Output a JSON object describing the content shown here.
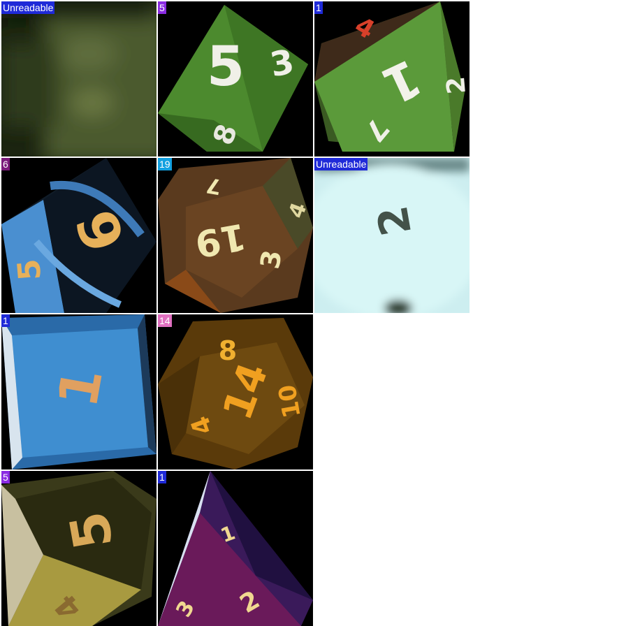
{
  "tiles": [
    {
      "label": "Unreadable",
      "badge_color": "#1f2ad8",
      "die": "blur-green",
      "faces": []
    },
    {
      "label": "5",
      "badge_color": "#8a2be2",
      "die": "d8-green",
      "faces": [
        "5",
        "3",
        "8"
      ]
    },
    {
      "label": "1",
      "badge_color": "#1f2ad8",
      "die": "d8-green-2",
      "faces": [
        "1",
        "4",
        "7",
        "2"
      ]
    },
    {
      "label": "6",
      "badge_color": "#7a1a7a",
      "die": "d8-blue-black",
      "faces": [
        "6",
        "5"
      ]
    },
    {
      "label": "19",
      "badge_color": "#12a0e0",
      "die": "d20-brown",
      "faces": [
        "19",
        "3",
        "7",
        "4"
      ]
    },
    {
      "label": "Unreadable",
      "badge_color": "#1f2ad8",
      "die": "blur-lightblue",
      "faces": [
        "2"
      ]
    },
    {
      "label": "1",
      "badge_color": "#1f2ad8",
      "die": "d6-blue",
      "faces": [
        "1"
      ]
    },
    {
      "label": "14",
      "badge_color": "#e070c0",
      "die": "d20-amber",
      "faces": [
        "14",
        "8",
        "4",
        "10"
      ]
    },
    {
      "label": "5",
      "badge_color": "#8a2be2",
      "die": "d8-yellow-black",
      "faces": [
        "5",
        "4"
      ]
    },
    {
      "label": "1",
      "badge_color": "#1f2ad8",
      "die": "d4-purple",
      "faces": [
        "1",
        "2",
        "3"
      ]
    }
  ]
}
